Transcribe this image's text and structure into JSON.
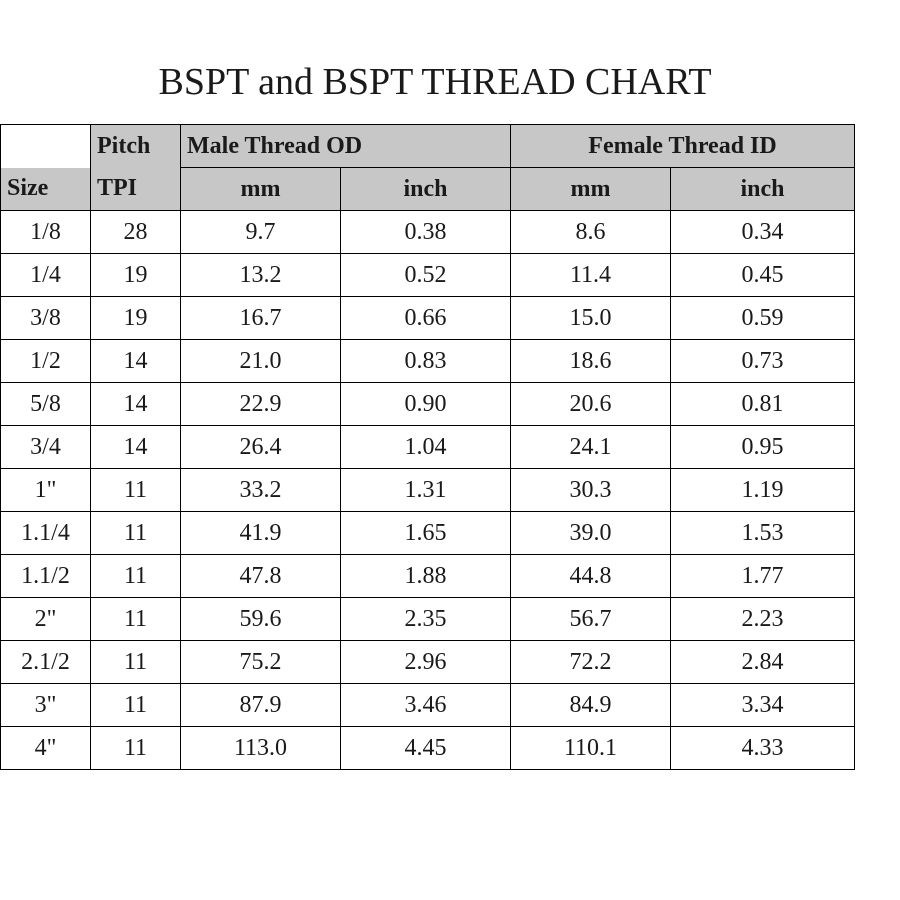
{
  "title": "BSPT and BSPT THREAD CHART",
  "table": {
    "type": "table",
    "header_bg": "#c7c7c7",
    "border_color": "#000000",
    "background_color": "#ffffff",
    "font_family": "Times New Roman",
    "title_fontsize": 38,
    "cell_fontsize": 24,
    "columns_top": {
      "blank": "",
      "pitch": "Pitch",
      "male": "Male Thread OD",
      "female": "Female Thread ID"
    },
    "columns_sub": {
      "size": "Size",
      "tpi": "TPI",
      "male_mm": "mm",
      "male_inch": "inch",
      "female_mm": "mm",
      "female_inch": "inch"
    },
    "rows": [
      {
        "size": "1/8",
        "tpi": "28",
        "m_mm": "9.7",
        "m_in": "0.38",
        "f_mm": "8.6",
        "f_in": "0.34"
      },
      {
        "size": "1/4",
        "tpi": "19",
        "m_mm": "13.2",
        "m_in": "0.52",
        "f_mm": "11.4",
        "f_in": "0.45"
      },
      {
        "size": "3/8",
        "tpi": "19",
        "m_mm": "16.7",
        "m_in": "0.66",
        "f_mm": "15.0",
        "f_in": "0.59"
      },
      {
        "size": "1/2",
        "tpi": "14",
        "m_mm": "21.0",
        "m_in": "0.83",
        "f_mm": "18.6",
        "f_in": "0.73"
      },
      {
        "size": "5/8",
        "tpi": "14",
        "m_mm": "22.9",
        "m_in": "0.90",
        "f_mm": "20.6",
        "f_in": "0.81"
      },
      {
        "size": "3/4",
        "tpi": "14",
        "m_mm": "26.4",
        "m_in": "1.04",
        "f_mm": "24.1",
        "f_in": "0.95"
      },
      {
        "size": "1\"",
        "tpi": "11",
        "m_mm": "33.2",
        "m_in": "1.31",
        "f_mm": "30.3",
        "f_in": "1.19"
      },
      {
        "size": "1.1/4",
        "tpi": "11",
        "m_mm": "41.9",
        "m_in": "1.65",
        "f_mm": "39.0",
        "f_in": "1.53"
      },
      {
        "size": "1.1/2",
        "tpi": "11",
        "m_mm": "47.8",
        "m_in": "1.88",
        "f_mm": "44.8",
        "f_in": "1.77"
      },
      {
        "size": "2\"",
        "tpi": "11",
        "m_mm": "59.6",
        "m_in": "2.35",
        "f_mm": "56.7",
        "f_in": "2.23"
      },
      {
        "size": "2.1/2",
        "tpi": "11",
        "m_mm": "75.2",
        "m_in": "2.96",
        "f_mm": "72.2",
        "f_in": "2.84"
      },
      {
        "size": "3\"",
        "tpi": "11",
        "m_mm": "87.9",
        "m_in": "3.46",
        "f_mm": "84.9",
        "f_in": "3.34"
      },
      {
        "size": "4\"",
        "tpi": "11",
        "m_mm": "113.0",
        "m_in": "4.45",
        "f_mm": "110.1",
        "f_in": "4.33"
      }
    ]
  }
}
